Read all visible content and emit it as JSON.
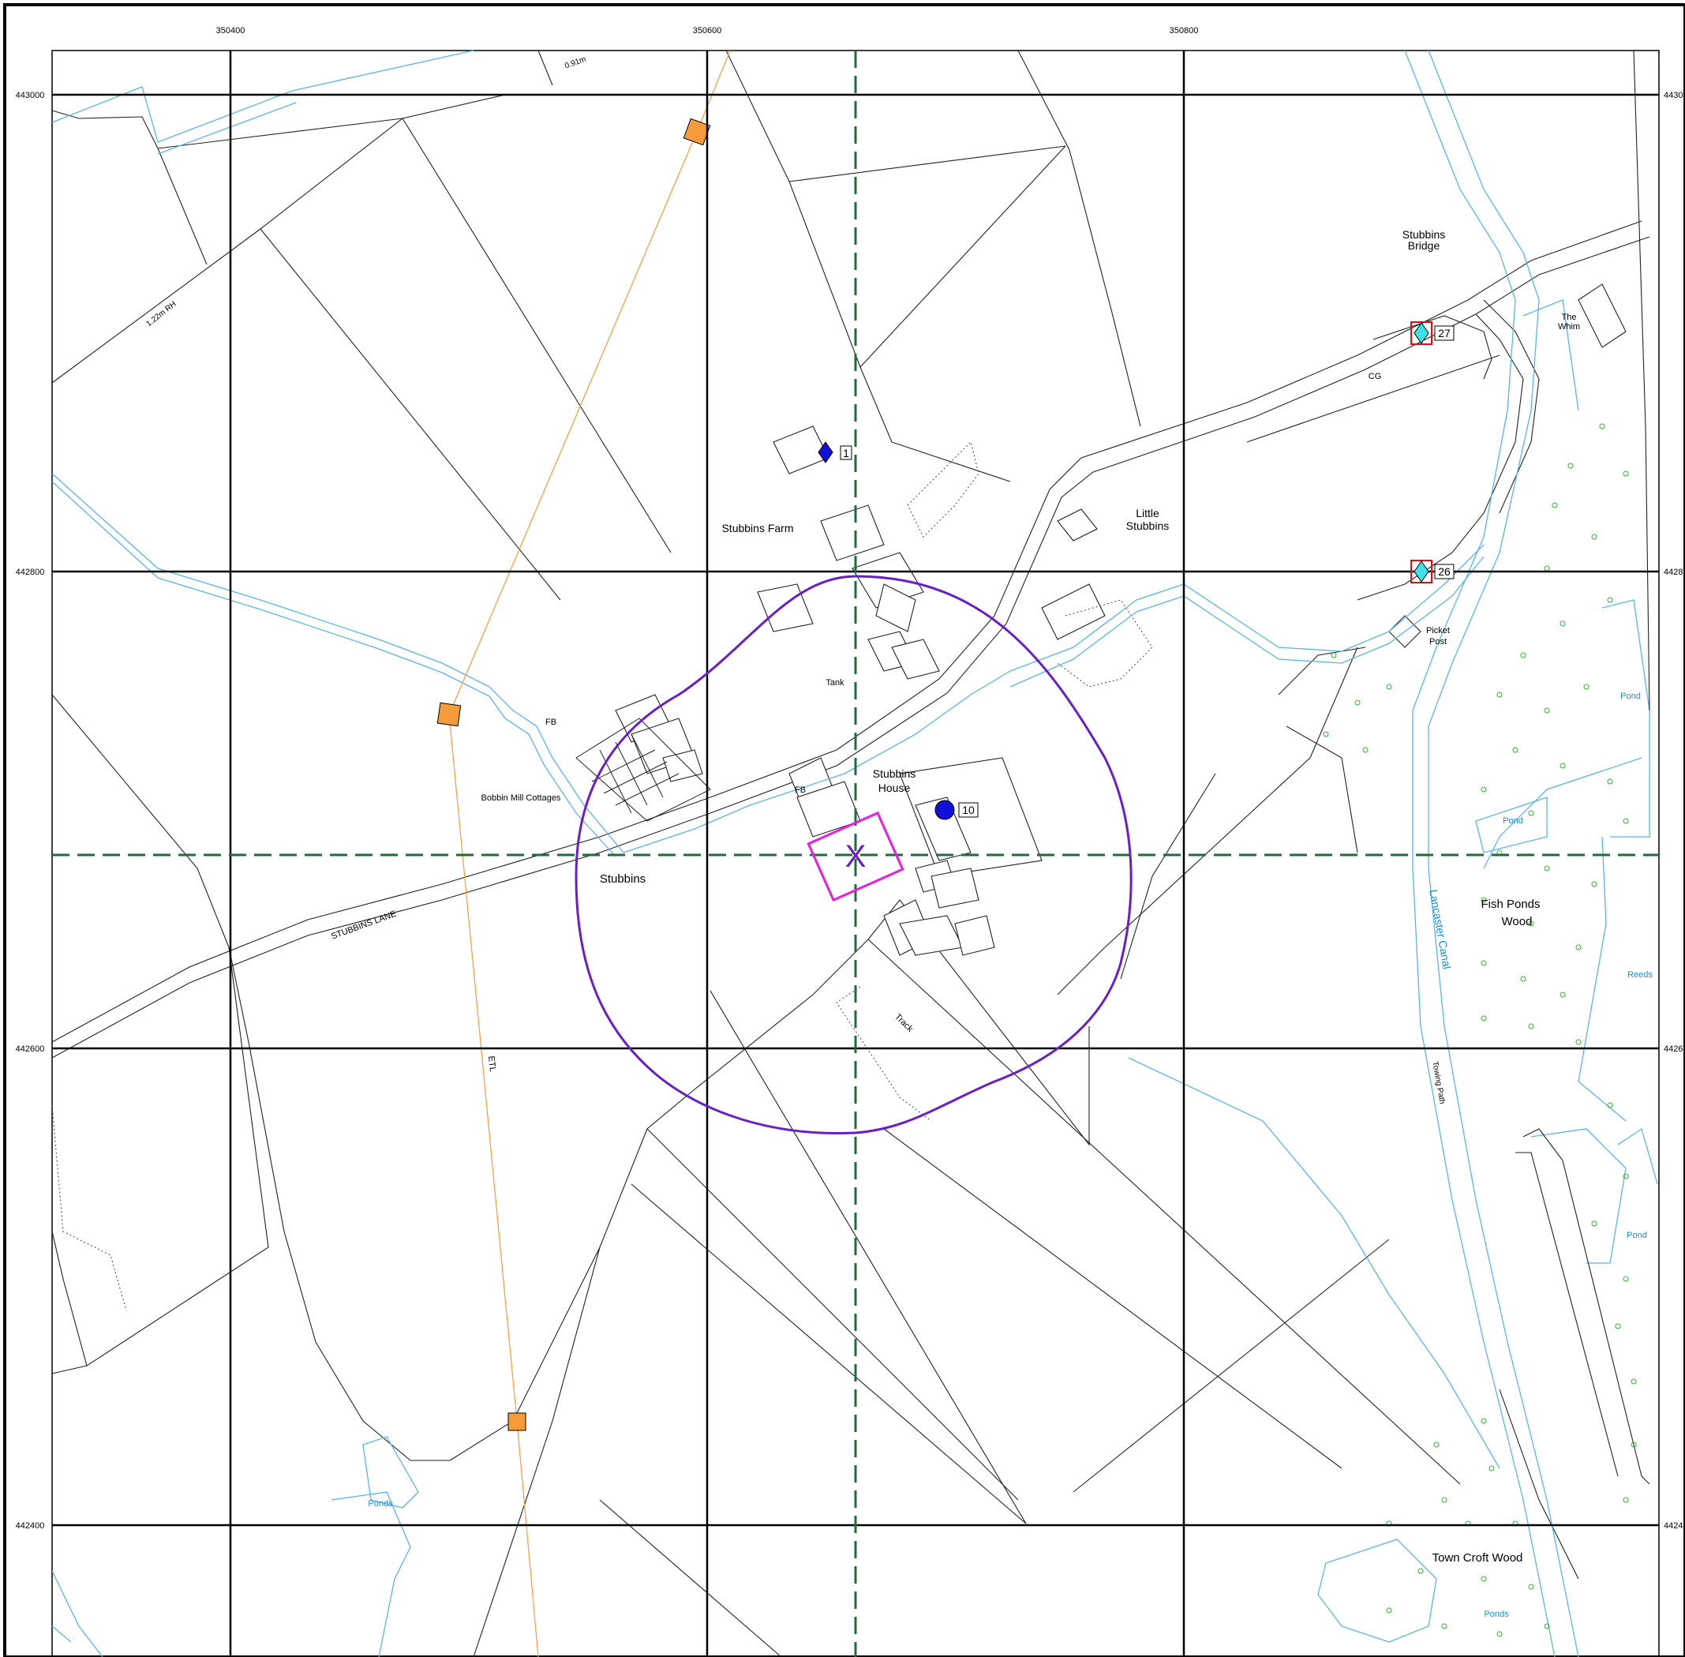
{
  "map": {
    "grid_labels": {
      "eastings": [
        "350400",
        "350600",
        "350800"
      ],
      "northings": [
        "443000",
        "442800",
        "442600",
        "442400"
      ]
    },
    "place_labels": {
      "stubbins_bridge": [
        "Stubbins",
        "Bridge"
      ],
      "the_whim": [
        "The",
        "Whim"
      ],
      "cg": "CG",
      "little_stubbins": [
        "Little",
        "Stubbins"
      ],
      "stubbins_farm": "Stubbins Farm",
      "picket_post": [
        "Picket",
        "Post"
      ],
      "tank": "Tank",
      "fb_1": "FB",
      "fb_2": "FB",
      "bobbin_mill_cottages": "Bobbin Mill Cottages",
      "stubbins_house": [
        "Stubbins",
        "House"
      ],
      "stubbins": "Stubbins",
      "stubbins_lane": "STUBBINS LANE",
      "rh_122": "1.22m RH",
      "rh_091": "0.91m",
      "track": "Track",
      "etl": "ETL",
      "towing_path": "Towing Path",
      "fish_ponds_wood": [
        "Fish Ponds",
        "Wood"
      ],
      "town_croft_wood": "Town Croft Wood"
    },
    "water_labels": {
      "lancaster_canal": "Lancaster Canal",
      "pond_1": "Pond",
      "pond_2": "Pond",
      "pond_3": "Pond",
      "reeds": "Reeds",
      "ponds_1": "Ponds",
      "ponds_2": "Ponds"
    },
    "markers": {
      "m1": "1",
      "m10": "10",
      "m26": "26",
      "m27": "27"
    },
    "colors": {
      "grid": "#000000",
      "crosshair": "#1f6b3a",
      "buffer_circle": "#6a1fc4",
      "site_box": "#e81ee0",
      "water": "#5ab4ec",
      "power_line": "#f59b3c",
      "power_pylon": "#f59b3c",
      "marker_blue": "#1010d8",
      "marker_cyan": "#40e0e8",
      "marker_red_box": "#e01010",
      "trees": "#2db52d"
    }
  }
}
